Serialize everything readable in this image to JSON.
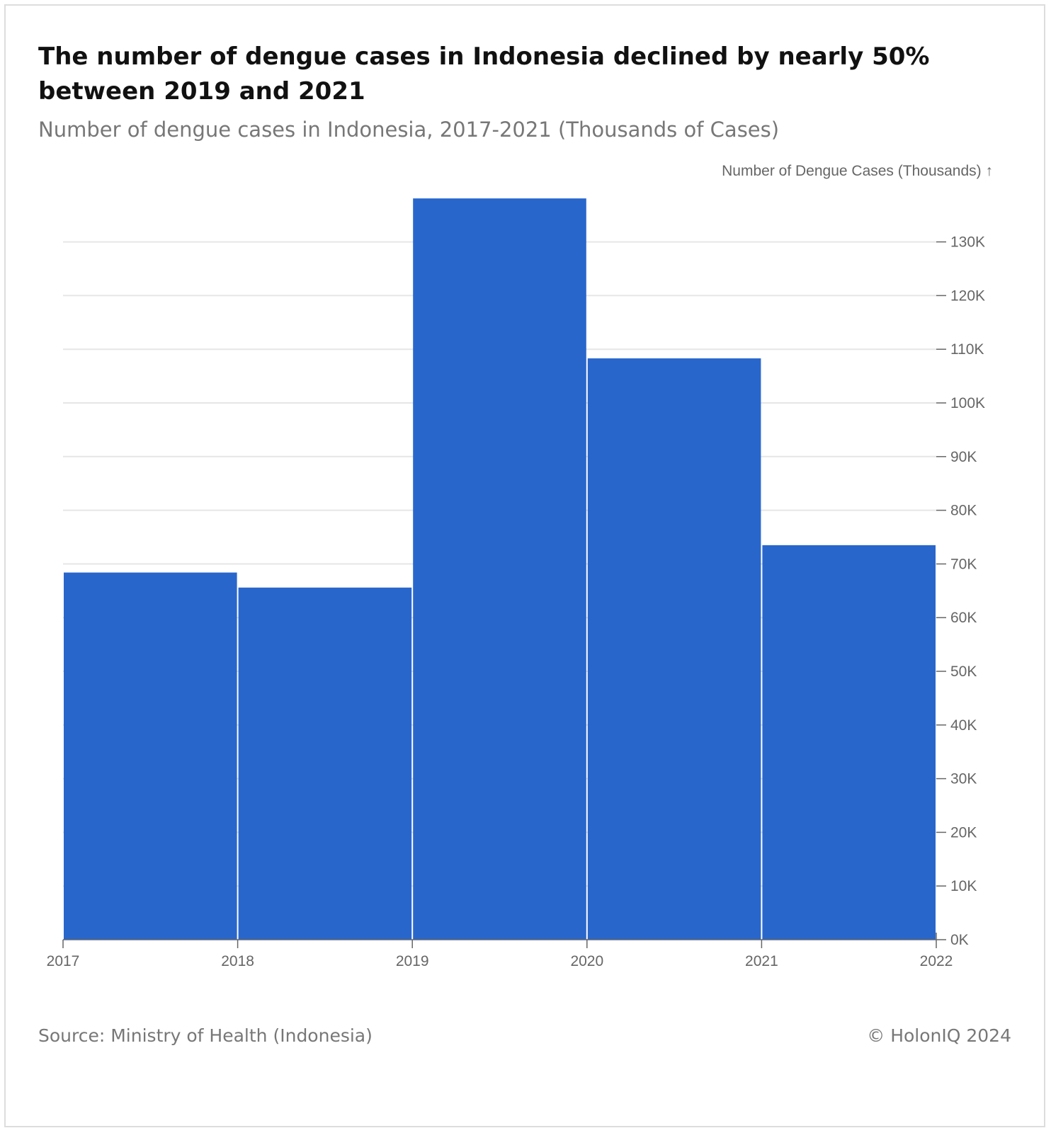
{
  "header": {
    "title": "The number of dengue cases in Indonesia declined by nearly 50% between 2019 and 2021",
    "subtitle": "Number of dengue cases in Indonesia, 2017-2021 (Thousands of Cases)"
  },
  "footer": {
    "source": "Source: Ministry of Health (Indonesia)",
    "copyright": "© HolonIQ 2024"
  },
  "chart_data": {
    "type": "bar",
    "title": "The number of dengue cases in Indonesia declined by nearly 50% between 2019 and 2021",
    "subtitle": "Number of dengue cases in Indonesia, 2017-2021 (Thousands of Cases)",
    "ylabel": "Number of Dengue Cases (Thousands) ↑",
    "xlabel": "",
    "categories": [
      "2017",
      "2018",
      "2019",
      "2020",
      "2021"
    ],
    "values": [
      68.4,
      65.6,
      138.1,
      108.3,
      73.5
    ],
    "x_ticks": [
      "2017",
      "2018",
      "2019",
      "2020",
      "2021",
      "2022"
    ],
    "y_ticks": [
      0,
      10,
      20,
      30,
      40,
      50,
      60,
      70,
      80,
      90,
      100,
      110,
      120,
      130
    ],
    "y_tick_labels": [
      "0K",
      "10K",
      "20K",
      "30K",
      "40K",
      "50K",
      "60K",
      "70K",
      "80K",
      "90K",
      "100K",
      "110K",
      "120K",
      "130K"
    ],
    "ylim": [
      0,
      138
    ],
    "y_axis_position": "right",
    "grid": true,
    "bar_color": "#2966CC",
    "grid_color": "#e6e6e6",
    "axis_color": "#666666"
  }
}
